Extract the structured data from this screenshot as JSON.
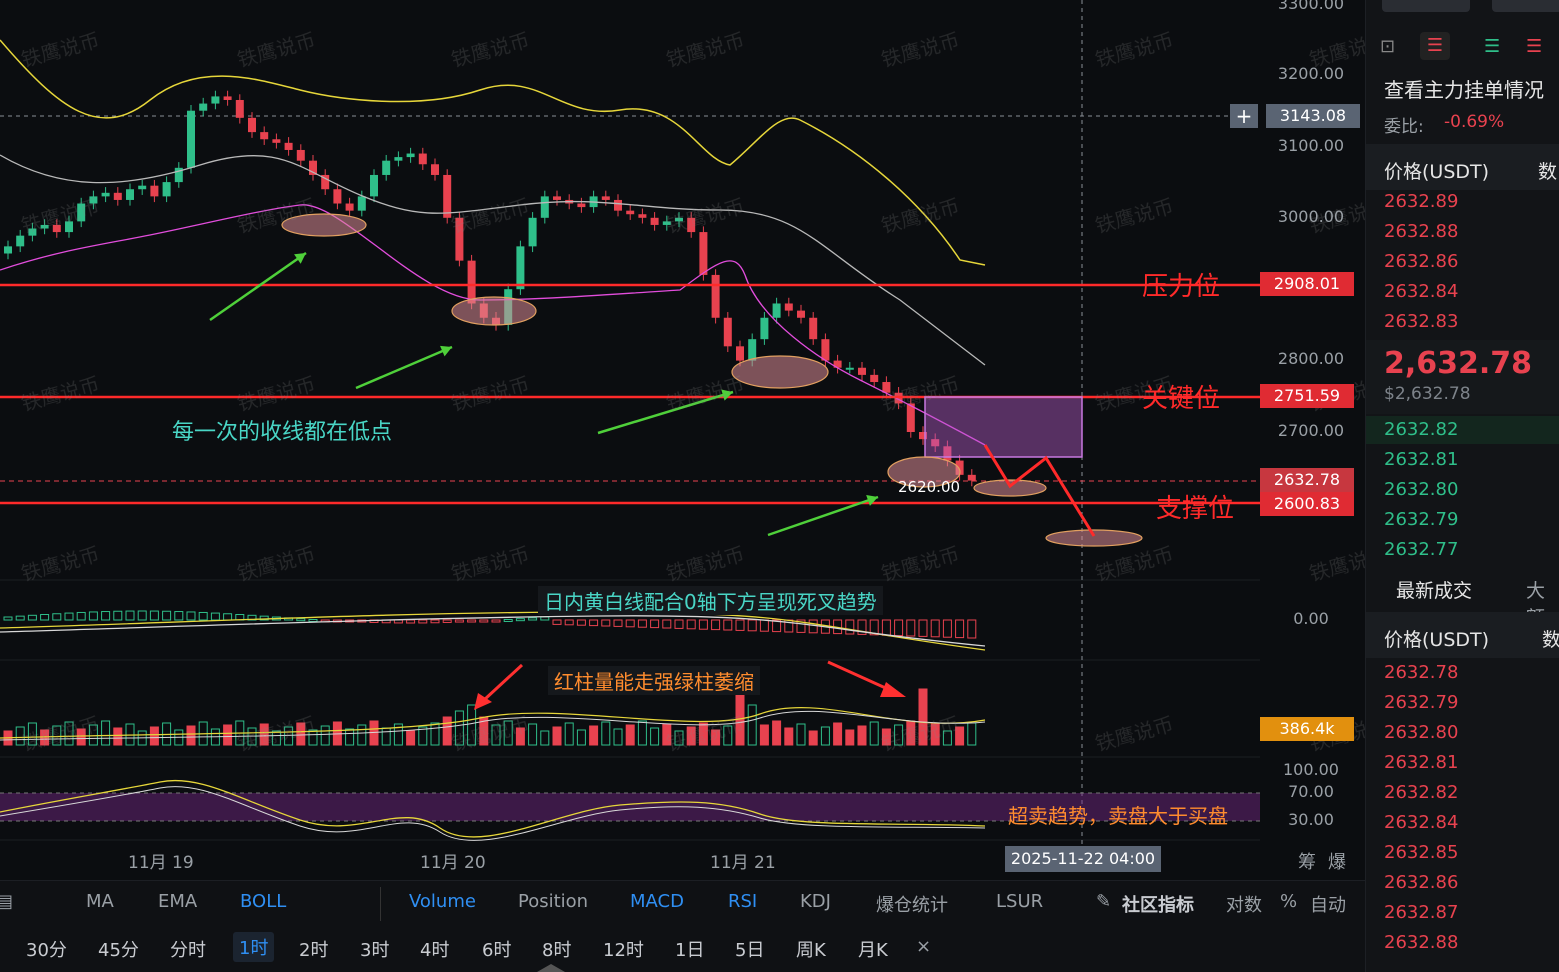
{
  "chart": {
    "y_axis_labels": [
      "3300.00",
      "3200.00",
      "3100.00",
      "3000.00",
      "2800.00",
      "2700.00"
    ],
    "crosshair_price": "3143.08",
    "resistance": {
      "label": "压力位",
      "price": "2908.01"
    },
    "key_level": {
      "label": "关键位",
      "price": "2751.59"
    },
    "current": {
      "price": "2632.78"
    },
    "support": {
      "label": "支撑位",
      "price": "2600.83"
    },
    "low_marker": "2620.00",
    "x_axis_labels": [
      "11月 19",
      "11月 20",
      "11月 21"
    ],
    "crosshair_time": "2025-11-22 04:00",
    "macd_zero": "0.00",
    "volume_value": "386.4k",
    "rsi_levels": [
      "100.00",
      "70.00",
      "30.00"
    ],
    "axis_buttons": [
      "筹",
      "爆"
    ],
    "watermark": "铁鹰说币",
    "annotations": {
      "lows_note": "每一次的收线都在低点",
      "macd_note": "日内黄白线配合0轴下方呈现死叉趋势",
      "volume_note": "红柱量能走强绿柱萎缩",
      "rsi_note": "超卖趋势，卖盘大于买盘"
    }
  },
  "indicator_toolbar": {
    "items": [
      "MA",
      "EMA",
      "BOLL",
      "Volume",
      "Position",
      "MACD",
      "RSI",
      "KDJ",
      "爆仓统计",
      "LSUR",
      "社区指标",
      "对数",
      "%",
      "自动"
    ]
  },
  "interval_toolbar": {
    "items": [
      "30分",
      "45分",
      "分时",
      "1时",
      "2时",
      "3时",
      "4时",
      "6时",
      "8时",
      "12时",
      "1日",
      "5日",
      "周K",
      "月K",
      "×"
    ],
    "active": "1时"
  },
  "order_book": {
    "title": "查看主力挂单情况",
    "ratio_label": "委比:",
    "ratio_value": "-0.69%",
    "col_price": "价格(USDT)",
    "col_qty": "数",
    "asks": [
      "2632.89",
      "2632.88",
      "2632.86",
      "2632.84",
      "2632.83"
    ],
    "last_price": "2,632.78",
    "last_price_sub": "$2,632.78",
    "bids": [
      "2632.82",
      "2632.81",
      "2632.80",
      "2632.79",
      "2632.77"
    ],
    "trades_title": "最新成交",
    "trades_tab2": "大额",
    "trades_col_price": "价格(USDT)",
    "trades_col_qty": "数",
    "trades": [
      "2632.78",
      "2632.79",
      "2632.80",
      "2632.81",
      "2632.82",
      "2632.84",
      "2632.85",
      "2632.86",
      "2632.87",
      "2632.88"
    ]
  },
  "colors": {
    "up": "#2fbf8a",
    "down": "#e8424f",
    "resistance_line": "#ff2a2a",
    "boll_upper": "#e6d63a",
    "boll_mid": "#b9b9b9",
    "boll_lower": "#e24ddc",
    "arrow": "#4fd03a",
    "accent": "#2f8ff3"
  }
}
